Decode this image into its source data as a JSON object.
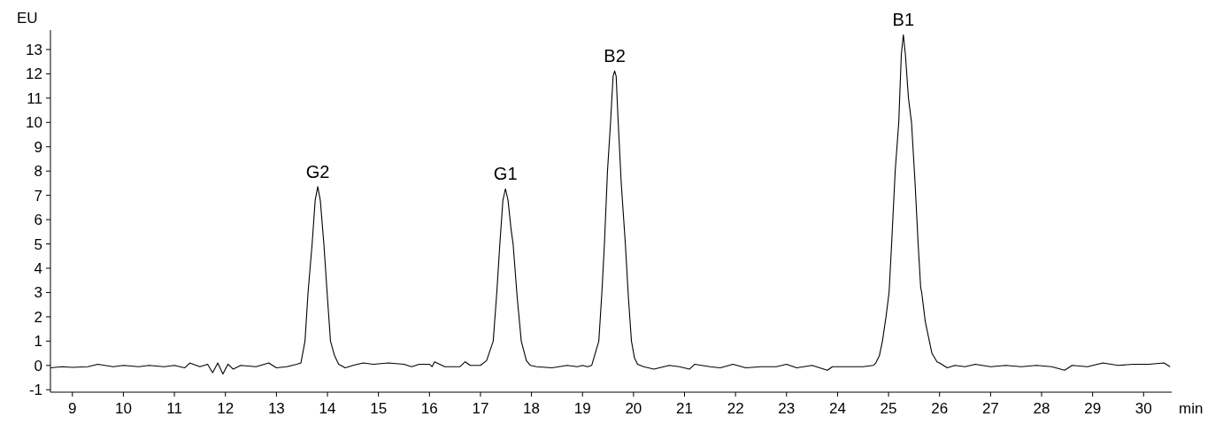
{
  "chart_data": {
    "type": "line",
    "xlabel": "min",
    "ylabel": "EU",
    "xlim": [
      8.57,
      30.55
    ],
    "ylim": [
      -1.1,
      13.8
    ],
    "xticks": [
      9,
      10,
      11,
      12,
      13,
      14,
      15,
      16,
      17,
      18,
      19,
      20,
      21,
      22,
      23,
      24,
      25,
      26,
      27,
      28,
      29,
      30
    ],
    "yticks": [
      -1,
      0,
      1,
      2,
      3,
      4,
      5,
      6,
      7,
      8,
      9,
      10,
      11,
      12,
      13
    ],
    "annotations": [
      {
        "text": "G2",
        "x": 13.81,
        "y": 7.36
      },
      {
        "text": "G1",
        "x": 17.49,
        "y": 7.27
      },
      {
        "text": "B2",
        "x": 19.63,
        "y": 12.12
      },
      {
        "text": "B1",
        "x": 25.29,
        "y": 13.61
      }
    ],
    "series": [
      {
        "color": "#000000",
        "line_style": "solid",
        "x": [
          8.57,
          8.8,
          9.0,
          9.3,
          9.5,
          9.8,
          10.0,
          10.3,
          10.5,
          10.8,
          11.0,
          11.2,
          11.3,
          11.5,
          11.65,
          11.75,
          11.85,
          11.95,
          12.05,
          12.15,
          12.3,
          12.6,
          12.85,
          13.0,
          13.2,
          13.4,
          13.48,
          13.56,
          13.62,
          13.7,
          13.76,
          13.81,
          13.86,
          13.93,
          14.0,
          14.06,
          14.14,
          14.22,
          14.35,
          14.5,
          14.7,
          14.9,
          15.2,
          15.5,
          15.65,
          15.8,
          16.0,
          16.05,
          16.1,
          16.3,
          16.6,
          16.7,
          16.8,
          17.0,
          17.12,
          17.25,
          17.32,
          17.38,
          17.44,
          17.49,
          17.54,
          17.6,
          17.64,
          17.72,
          17.8,
          17.9,
          17.98,
          18.1,
          18.4,
          18.7,
          18.9,
          19.0,
          19.1,
          19.18,
          19.25,
          19.32,
          19.38,
          19.43,
          19.49,
          19.55,
          19.6,
          19.63,
          19.66,
          19.7,
          19.76,
          19.84,
          19.9,
          19.96,
          20.02,
          20.08,
          20.2,
          20.4,
          20.7,
          20.9,
          21.1,
          21.2,
          21.5,
          21.7,
          21.95,
          22.2,
          22.5,
          22.8,
          23.0,
          23.2,
          23.5,
          23.8,
          23.9,
          24.2,
          24.5,
          24.7,
          24.75,
          24.82,
          24.88,
          24.95,
          25.01,
          25.06,
          25.13,
          25.2,
          25.25,
          25.29,
          25.33,
          25.39,
          25.45,
          25.52,
          25.58,
          25.63,
          25.65,
          25.72,
          25.8,
          25.85,
          25.95,
          26.0,
          26.15,
          26.3,
          26.5,
          26.7,
          27.0,
          27.3,
          27.6,
          27.9,
          28.2,
          28.45,
          28.6,
          28.9,
          29.2,
          29.5,
          29.8,
          30.1,
          30.4,
          30.52
        ],
        "values": [
          -0.1,
          -0.05,
          -0.08,
          -0.05,
          0.05,
          -0.05,
          0.0,
          -0.05,
          0.0,
          -0.05,
          0.0,
          -0.1,
          0.1,
          -0.05,
          0.05,
          -0.3,
          0.1,
          -0.35,
          0.05,
          -0.15,
          0.0,
          -0.05,
          0.1,
          -0.1,
          -0.05,
          0.05,
          0.1,
          1.0,
          3.0,
          5.0,
          6.8,
          7.36,
          6.8,
          5.0,
          2.8,
          1.0,
          0.4,
          0.05,
          -0.1,
          0.0,
          0.1,
          0.05,
          0.1,
          0.05,
          -0.05,
          0.05,
          0.05,
          -0.05,
          0.15,
          -0.05,
          -0.05,
          0.15,
          0.0,
          0.0,
          0.2,
          1.0,
          3.0,
          5.0,
          6.8,
          7.27,
          6.8,
          5.6,
          5.0,
          2.8,
          1.0,
          0.2,
          0.0,
          -0.05,
          -0.1,
          0.0,
          -0.05,
          0.0,
          -0.05,
          0.0,
          0.5,
          1.0,
          3.0,
          5.0,
          8.0,
          10.0,
          11.9,
          12.12,
          11.9,
          10.0,
          7.5,
          5.0,
          2.8,
          1.0,
          0.3,
          0.05,
          -0.05,
          -0.15,
          0.0,
          -0.05,
          -0.15,
          0.05,
          -0.05,
          -0.1,
          0.05,
          -0.1,
          -0.05,
          -0.05,
          0.05,
          -0.1,
          0.0,
          -0.2,
          -0.05,
          -0.05,
          -0.05,
          0.0,
          0.1,
          0.4,
          1.0,
          2.0,
          3.0,
          5.0,
          8.0,
          10.0,
          12.8,
          13.61,
          12.8,
          11.0,
          10.0,
          7.5,
          5.0,
          3.2,
          3.0,
          1.8,
          1.0,
          0.5,
          0.15,
          0.1,
          -0.1,
          0.0,
          -0.05,
          0.05,
          -0.05,
          0.0,
          -0.05,
          0.0,
          -0.05,
          -0.2,
          0.0,
          -0.05,
          0.1,
          0.0,
          0.05,
          0.05,
          0.1,
          -0.05
        ]
      }
    ]
  }
}
